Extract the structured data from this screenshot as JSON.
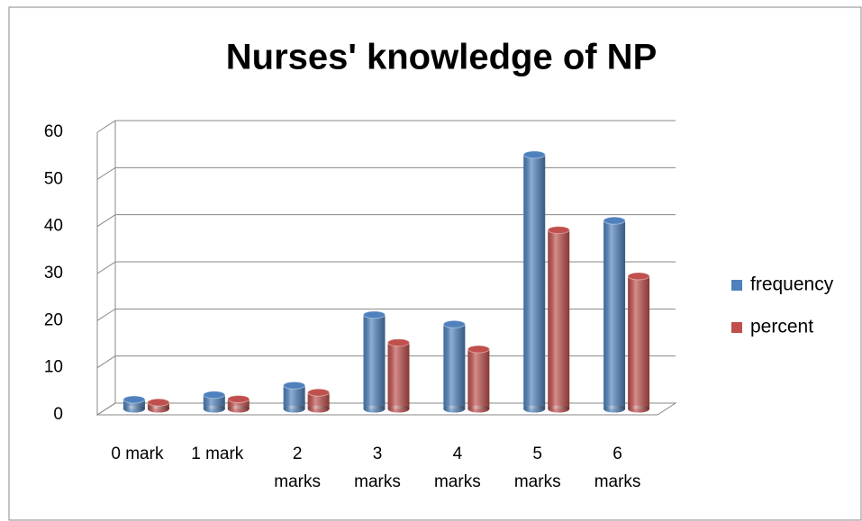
{
  "chart_data": {
    "type": "bar",
    "title": "Nurses' knowledge of NP",
    "categories": [
      "0 mark",
      "1 mark",
      "2 marks",
      "3 marks",
      "4 marks",
      "5 marks",
      "6 marks"
    ],
    "series": [
      {
        "name": "frequency",
        "color": "#4f81bd",
        "values": [
          2,
          3,
          5,
          20,
          18,
          54,
          40
        ]
      },
      {
        "name": "percent",
        "color": "#c0504d",
        "values": [
          1.4,
          2.1,
          3.5,
          14.1,
          12.7,
          38,
          28.2
        ]
      }
    ],
    "ylim": [
      0,
      60
    ],
    "yticks": [
      0,
      10,
      20,
      30,
      40,
      50,
      60
    ],
    "grid": true,
    "legend": "right"
  }
}
